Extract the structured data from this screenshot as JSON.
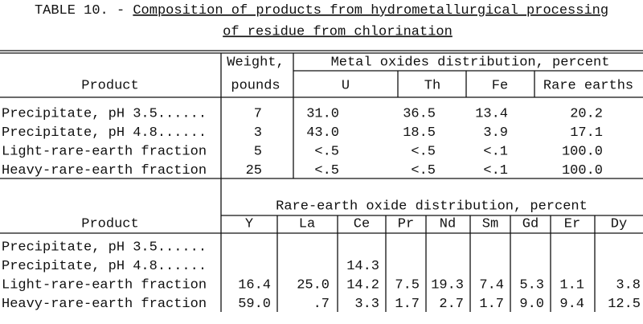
{
  "title": {
    "prefix": "TABLE 10. -",
    "lines": [
      "Composition of products from hydrometallurgical processing",
      "of residue from chlorination"
    ]
  },
  "table1": {
    "product_header": "Product",
    "weight_header": [
      "Weight,",
      "pounds"
    ],
    "group_header": "Metal oxides distribution, percent",
    "columns": [
      "U",
      "Th",
      "Fe",
      "Rare earths"
    ],
    "rows": [
      {
        "product": "Precipitate, pH 3.5......",
        "weight": "7",
        "values": [
          "31.0",
          "36.5",
          "13.4",
          "20.2"
        ]
      },
      {
        "product": "Precipitate, pH 4.8......",
        "weight": "3",
        "values": [
          "43.0",
          "18.5",
          "3.9",
          "17.1"
        ]
      },
      {
        "product": "Light-rare-earth fraction",
        "weight": "5",
        "values": [
          "<.5",
          "<.5",
          "<.1",
          "100.0"
        ]
      },
      {
        "product": "Heavy-rare-earth fraction",
        "weight": "25",
        "values": [
          "<.5",
          "<.5",
          "<.1",
          "100.0"
        ]
      }
    ]
  },
  "table2": {
    "product_header": "Product",
    "group_header": "Rare-earth oxide distribution, percent",
    "columns": [
      "Y",
      "La",
      "Ce",
      "Pr",
      "Nd",
      "Sm",
      "Gd",
      "Er",
      "Dy"
    ],
    "rows": [
      {
        "product": "Precipitate, pH 3.5......",
        "values": [
          null,
          null,
          null,
          null,
          null,
          null,
          null,
          null,
          null
        ]
      },
      {
        "product": "Precipitate, pH 4.8......",
        "values": [
          null,
          null,
          "14.3",
          null,
          null,
          null,
          null,
          null,
          null
        ]
      },
      {
        "product": "Light-rare-earth fraction",
        "values": [
          "16.4",
          "25.0",
          "14.2",
          "7.5",
          "19.3",
          "7.4",
          "5.3",
          "1.1",
          "3.8"
        ]
      },
      {
        "product": "Heavy-rare-earth fraction",
        "values": [
          "59.0",
          ".7",
          "3.3",
          "1.7",
          "2.7",
          "1.7",
          "9.0",
          "9.4",
          "12.5"
        ]
      }
    ]
  }
}
